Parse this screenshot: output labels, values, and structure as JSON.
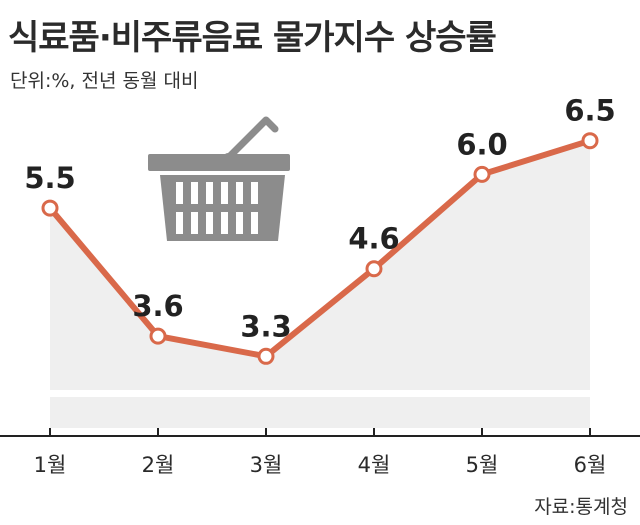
{
  "source": "자료:통계청",
  "colors": {
    "line": "#d9694a",
    "marker_fill": "#ffffff",
    "area": "#efefef",
    "basket": "#8c8c8c",
    "axis": "#222222"
  },
  "decoration": {
    "icon": "shopping-basket-icon"
  },
  "chart_data": {
    "type": "line",
    "title": "식료품·비주류음료 물가지수 상승률",
    "subtitle": "단위:%, 전년 동월 대비",
    "xlabel": "",
    "ylabel": "",
    "categories": [
      "1월",
      "2월",
      "3월",
      "4월",
      "5월",
      "6월"
    ],
    "values": [
      5.5,
      3.6,
      3.3,
      4.6,
      6.0,
      6.5
    ],
    "value_decimals": 1,
    "ylim": [
      2.8,
      7.0
    ],
    "y_axis_break": true,
    "grid": false,
    "legend": "none"
  }
}
